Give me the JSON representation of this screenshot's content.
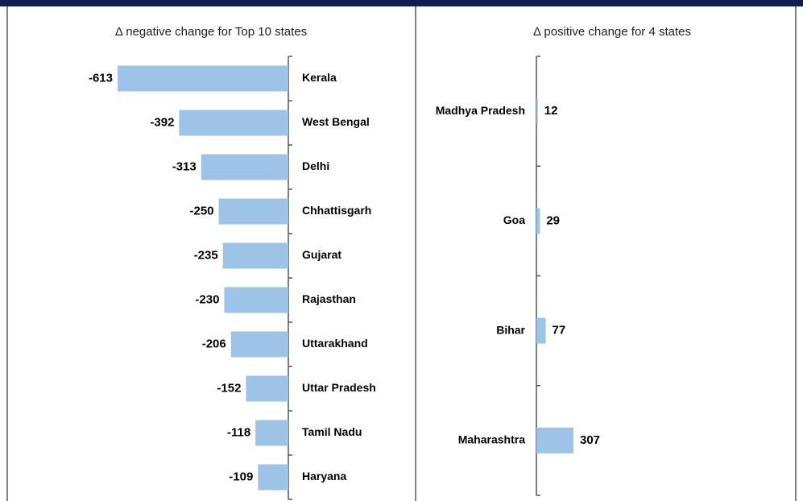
{
  "chart_data": [
    {
      "type": "bar",
      "orientation": "horizontal",
      "title": "Δ negative change for Top 10 states",
      "categories": [
        "Kerala",
        "West Bengal",
        "Delhi",
        "Chhattisgarh",
        "Gujarat",
        "Rajasthan",
        "Uttarakhand",
        "Uttar Pradesh",
        "Tamil Nadu",
        "Haryana"
      ],
      "values": [
        -613,
        -392,
        -313,
        -250,
        -235,
        -230,
        -206,
        -152,
        -118,
        -109
      ],
      "color": "#9dc3e6"
    },
    {
      "type": "bar",
      "orientation": "horizontal",
      "title": "Δ positive change for 4 states",
      "categories": [
        "Madhya Pradesh",
        "Goa",
        "Bihar",
        "Maharashtra"
      ],
      "values": [
        12,
        29,
        77,
        307
      ],
      "color": "#9dc3e6"
    }
  ]
}
